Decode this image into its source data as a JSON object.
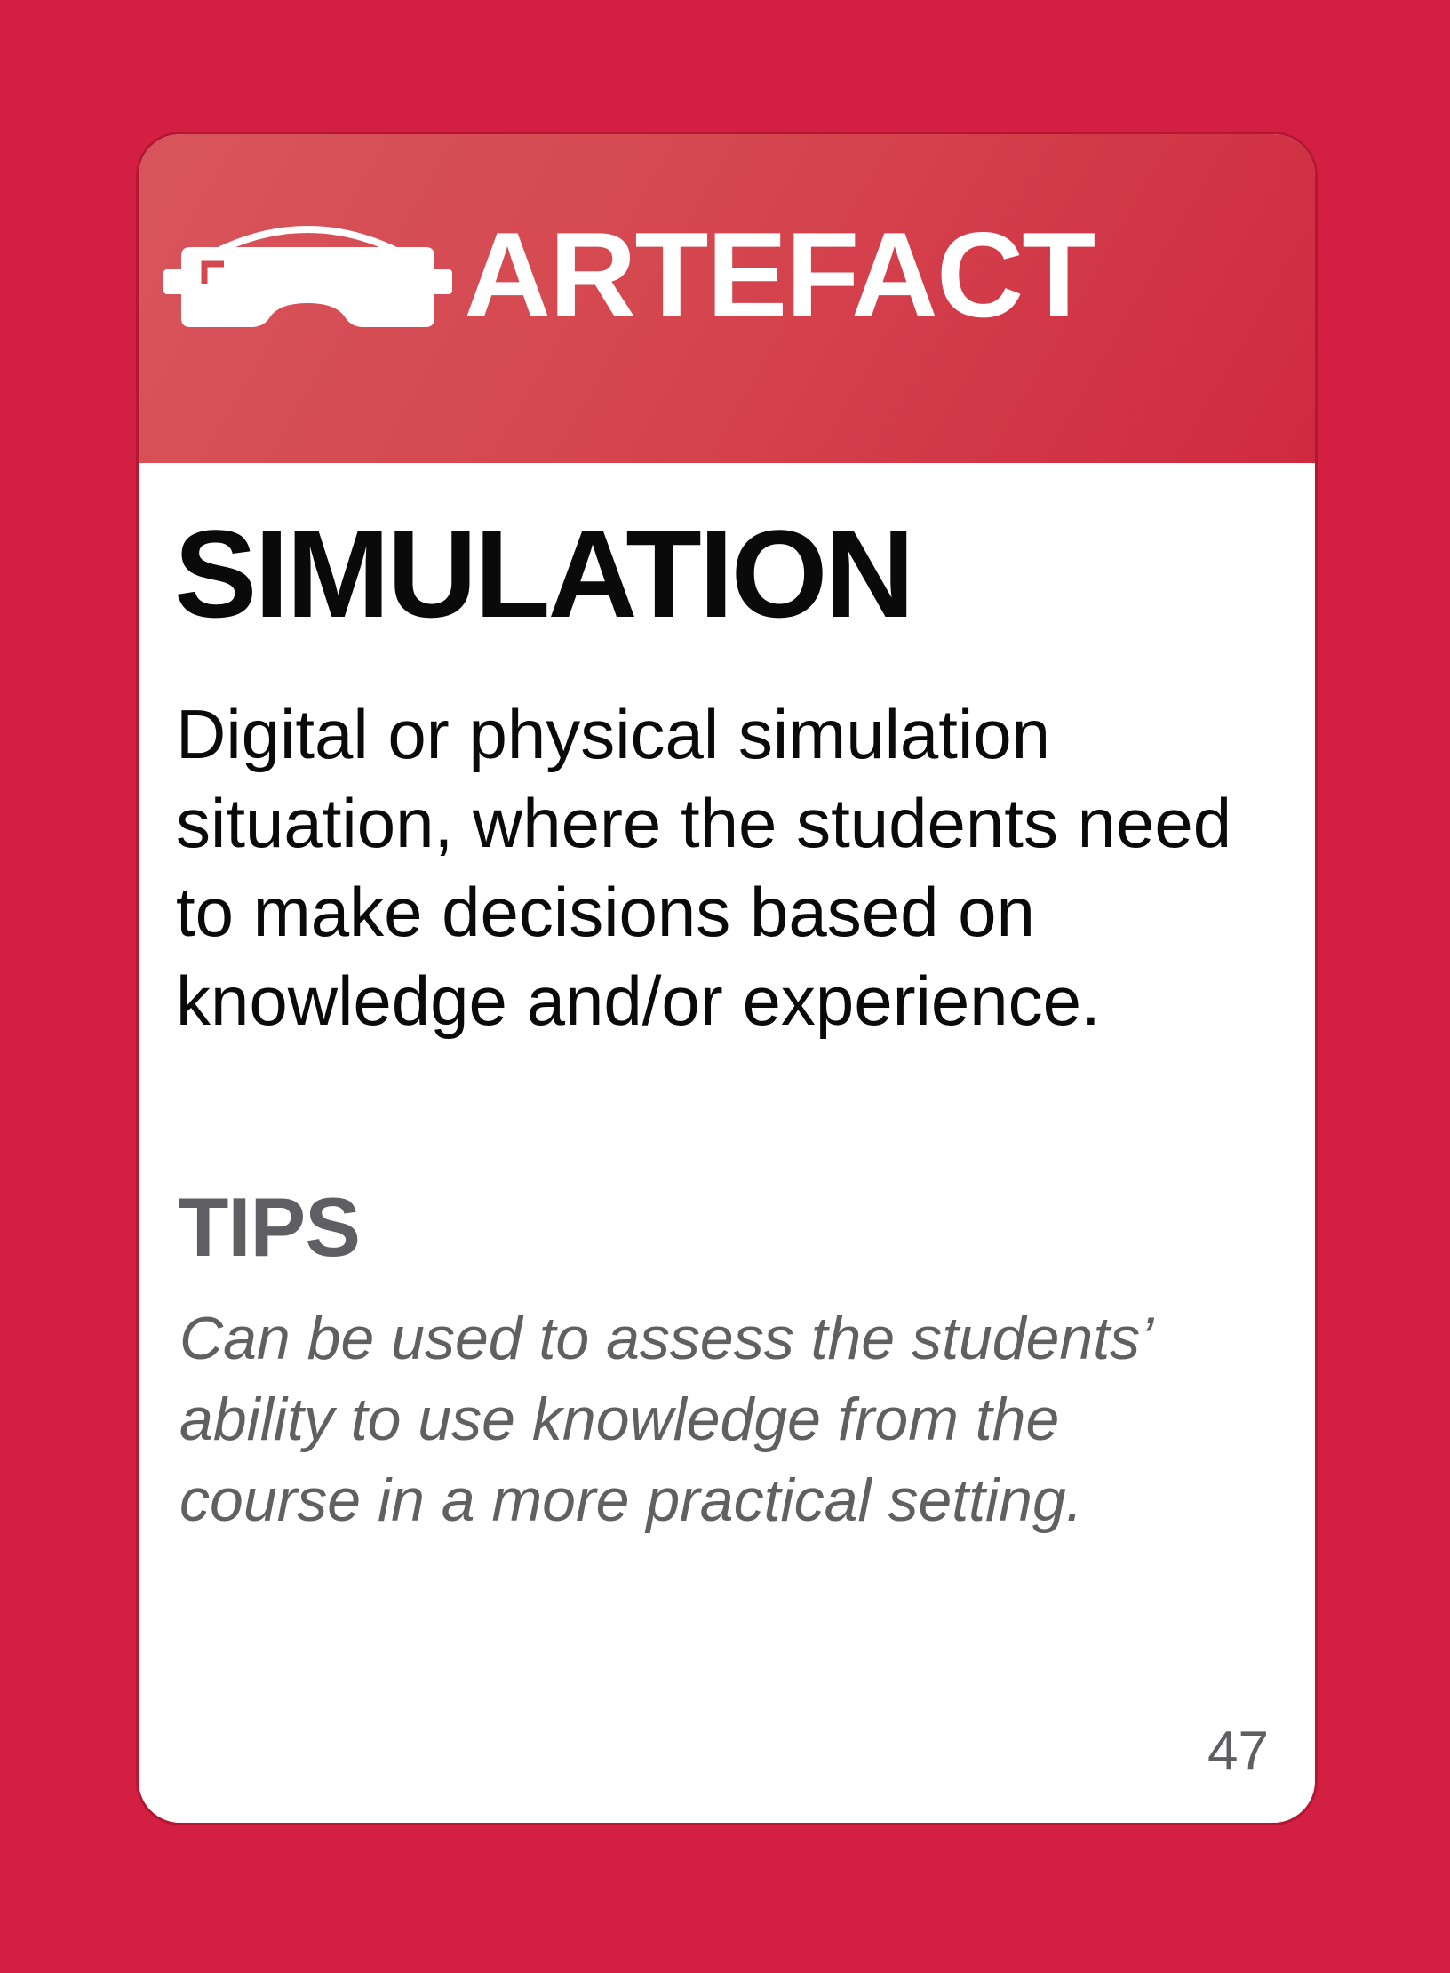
{
  "card": {
    "category": "ARTEFACT",
    "category_icon": "vr-headset-icon",
    "title": "SIMULATION",
    "description": "Digital or physical simulation situation, where the students need to make decisions based on knowledge and/or experience.",
    "tips_heading": "TIPS",
    "tips_text": "Can be used to assess the students’ ability to use knowledge from the course in a more practical setting.",
    "page_number": "47"
  },
  "colors": {
    "background": "#d21f42",
    "header": "#d5474f",
    "card": "#ffffff",
    "title": "#0a0a0a",
    "tips": "#5f5f63"
  }
}
